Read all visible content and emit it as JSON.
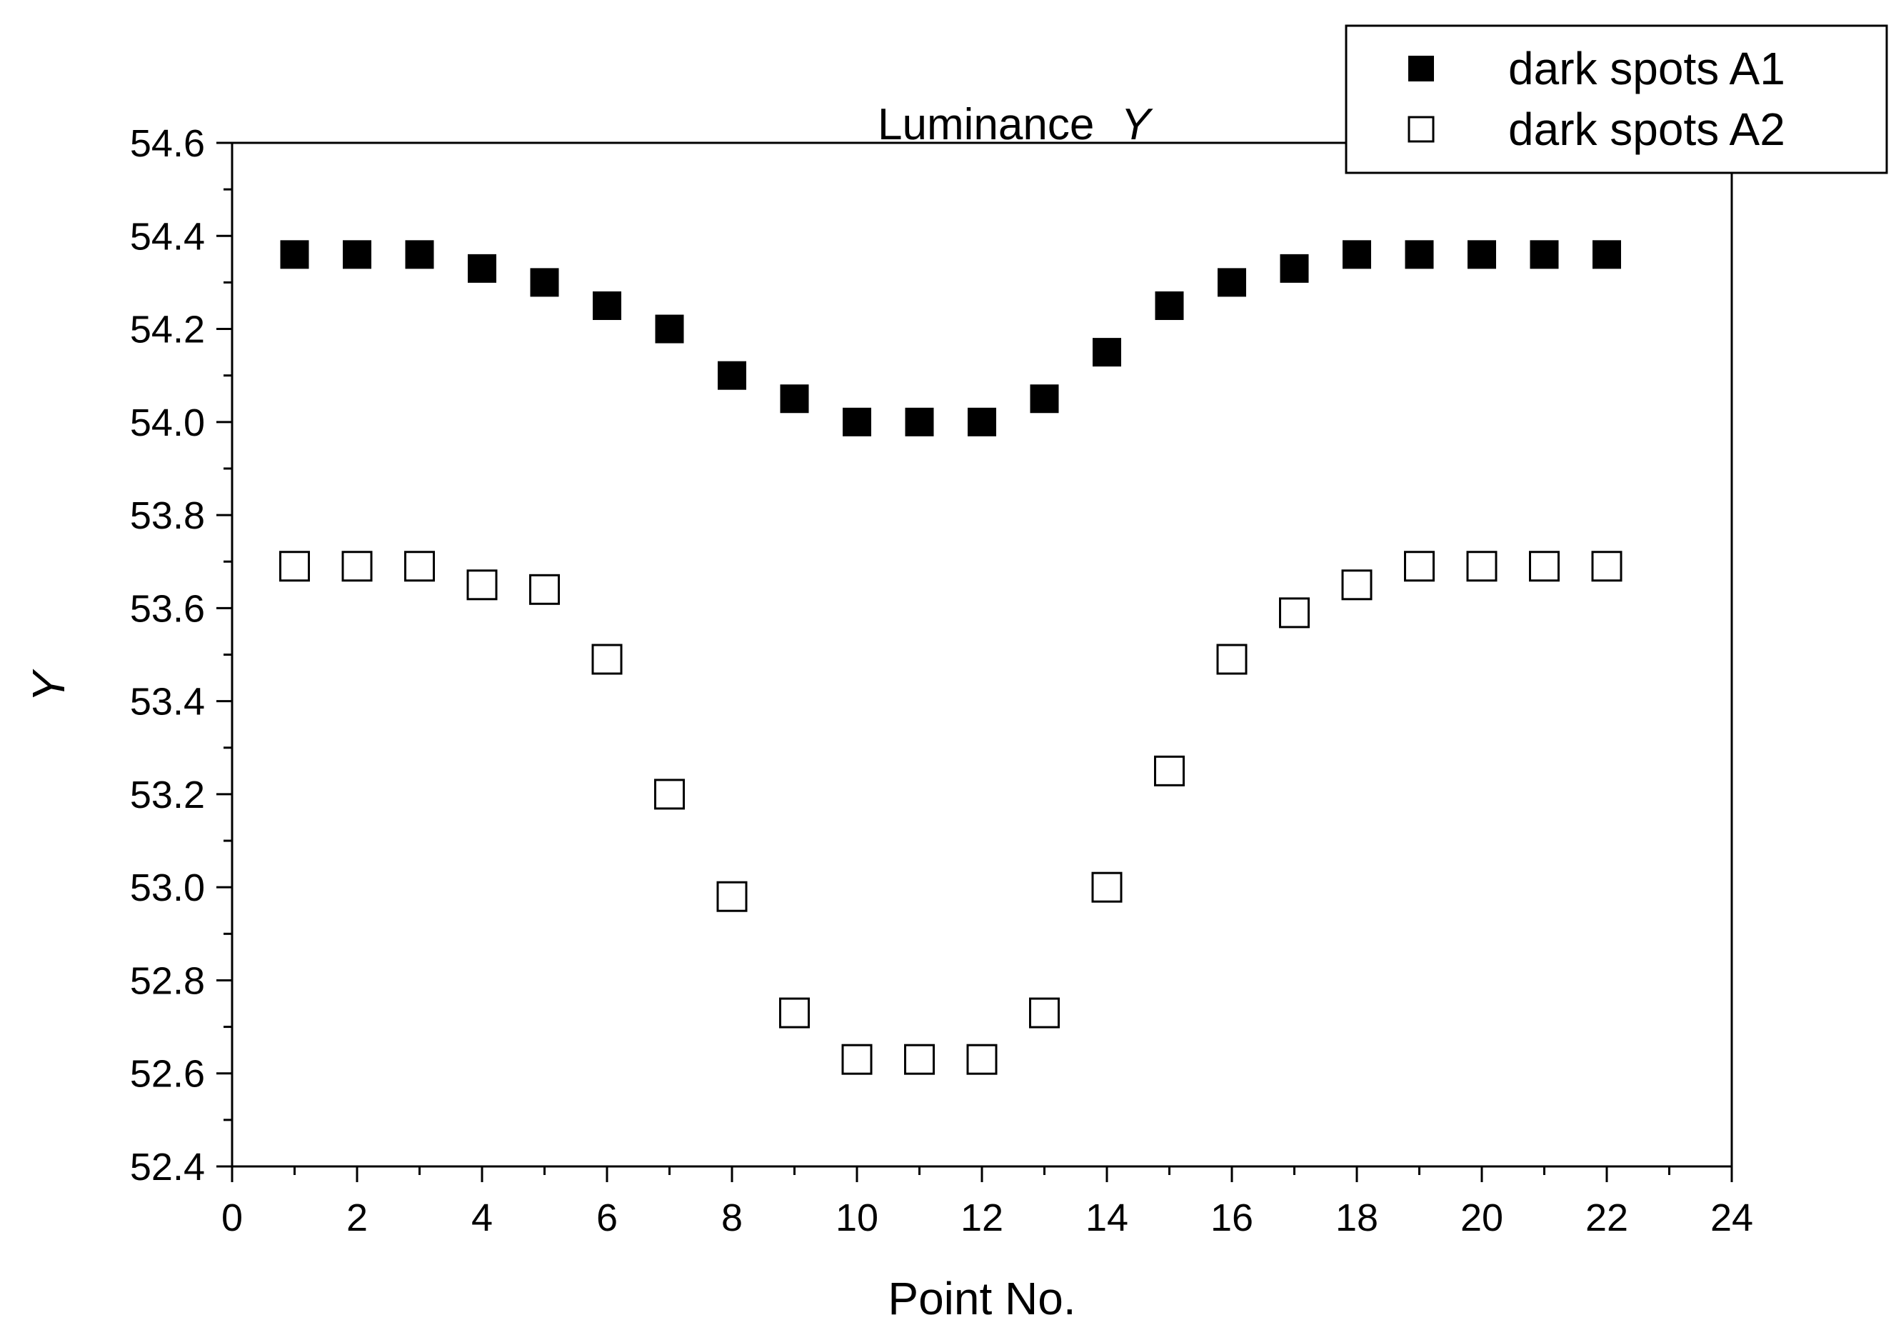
{
  "chart_data": {
    "type": "scatter",
    "title": "Luminance",
    "title_symbol": "Y",
    "xlabel": "Point No.",
    "ylabel": "Y",
    "xlim": [
      0,
      24
    ],
    "ylim": [
      52.4,
      54.6
    ],
    "x_ticks": [
      "0",
      "2",
      "4",
      "6",
      "8",
      "10",
      "12",
      "14",
      "16",
      "18",
      "20",
      "22",
      "24"
    ],
    "y_ticks": [
      "52.4",
      "52.6",
      "52.8",
      "53.0",
      "53.2",
      "53.4",
      "53.6",
      "53.8",
      "54.0",
      "54.2",
      "54.4",
      "54.6"
    ],
    "legend_position": "top-right",
    "grid": false,
    "series": [
      {
        "name": "dark spots A1",
        "marker": "filled-square",
        "color": "#000000",
        "x": [
          1,
          2,
          3,
          4,
          5,
          6,
          7,
          8,
          9,
          10,
          11,
          12,
          13,
          14,
          15,
          16,
          17,
          18,
          19,
          20,
          21,
          22
        ],
        "y": [
          54.36,
          54.36,
          54.36,
          54.33,
          54.3,
          54.25,
          54.2,
          54.1,
          54.05,
          54.0,
          54.0,
          54.0,
          54.05,
          54.15,
          54.25,
          54.3,
          54.33,
          54.36,
          54.36,
          54.36,
          54.36,
          54.36
        ]
      },
      {
        "name": "dark spots A2",
        "marker": "open-square",
        "color": "#000000",
        "x": [
          1,
          2,
          3,
          4,
          5,
          6,
          7,
          8,
          9,
          10,
          11,
          12,
          13,
          14,
          15,
          16,
          17,
          18,
          19,
          20,
          21,
          22
        ],
        "y": [
          53.69,
          53.69,
          53.69,
          53.65,
          53.64,
          53.49,
          53.2,
          52.98,
          52.73,
          52.63,
          52.63,
          52.63,
          52.73,
          53.0,
          53.25,
          53.49,
          53.59,
          53.65,
          53.69,
          53.69,
          53.69,
          53.69
        ]
      }
    ]
  }
}
